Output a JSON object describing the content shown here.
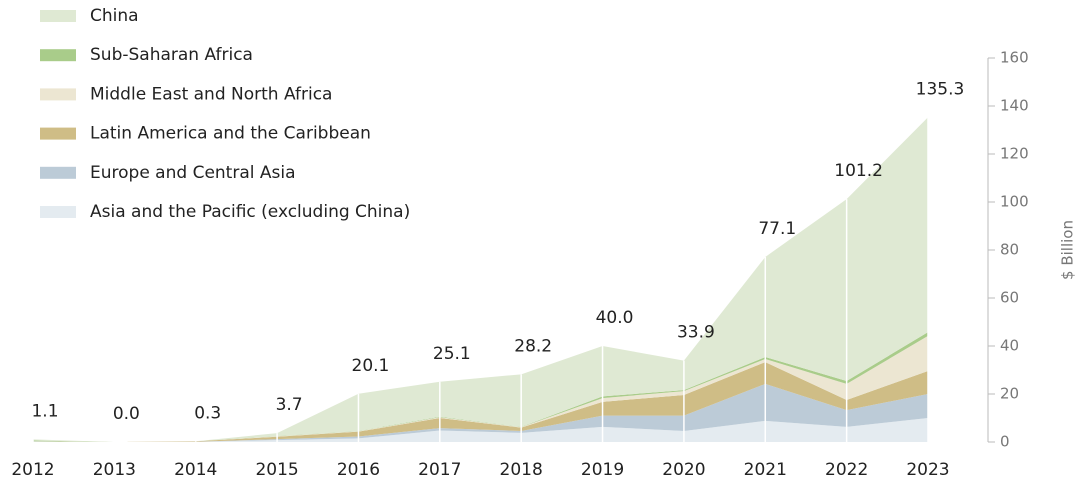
{
  "chart_data": {
    "type": "stacked_area",
    "categories": [
      "2012",
      "2013",
      "2014",
      "2015",
      "2016",
      "2017",
      "2018",
      "2019",
      "2020",
      "2021",
      "2022",
      "2023"
    ],
    "series": [
      {
        "name": "Asia and the Pacific (excluding China)",
        "color": "#e4ebf0",
        "values": [
          0.2,
          0,
          0.1,
          0.8,
          1.5,
          4.8,
          3.8,
          6.3,
          4.6,
          8.8,
          6.3,
          10
        ]
      },
      {
        "name": "Europe and Central Asia",
        "color": "#bccbd7",
        "values": [
          0,
          0,
          0,
          0.4,
          0.8,
          1.0,
          0.8,
          4.7,
          6.4,
          15.4,
          7.0,
          10
        ]
      },
      {
        "name": "Latin America and the Caribbean",
        "color": "#cfbd86",
        "values": [
          0.1,
          0,
          0.2,
          1.0,
          2.0,
          4.2,
          1.4,
          5.7,
          8.6,
          9.1,
          4.2,
          9.6
        ]
      },
      {
        "name": "Middle East and North Africa",
        "color": "#ece6d2",
        "values": [
          0,
          0,
          0,
          0.2,
          0.2,
          0.3,
          0.2,
          1.6,
          1.6,
          1.3,
          6.7,
          14.6
        ]
      },
      {
        "name": "Sub-Saharan Africa",
        "color": "#a9cc8a",
        "values": [
          0.3,
          0,
          0,
          0.1,
          0.1,
          0.2,
          0.1,
          0.7,
          0.4,
          0.8,
          1.2,
          1.6
        ]
      },
      {
        "name": "China",
        "color": "#dfe9d3",
        "values": [
          0.5,
          0,
          0,
          1.2,
          15.5,
          14.6,
          21.9,
          21.0,
          12.3,
          41.7,
          75.8,
          89.5
        ]
      }
    ],
    "totals": [
      1.1,
      0,
      0.3,
      3.7,
      20.1,
      25.1,
      28.2,
      40,
      33.9,
      77.1,
      101.2,
      135.3
    ],
    "total_labels": [
      "1.1",
      "0.0",
      "0.3",
      "3.7",
      "20.1",
      "25.1",
      "28.2",
      "40.0",
      "33.9",
      "77.1",
      "101.2",
      "135.3"
    ],
    "ylabel": "$ Billion",
    "ylim": [
      0,
      160
    ],
    "yticks": [
      0,
      20,
      40,
      60,
      80,
      100,
      120,
      140,
      160
    ],
    "legend": "top-left"
  }
}
